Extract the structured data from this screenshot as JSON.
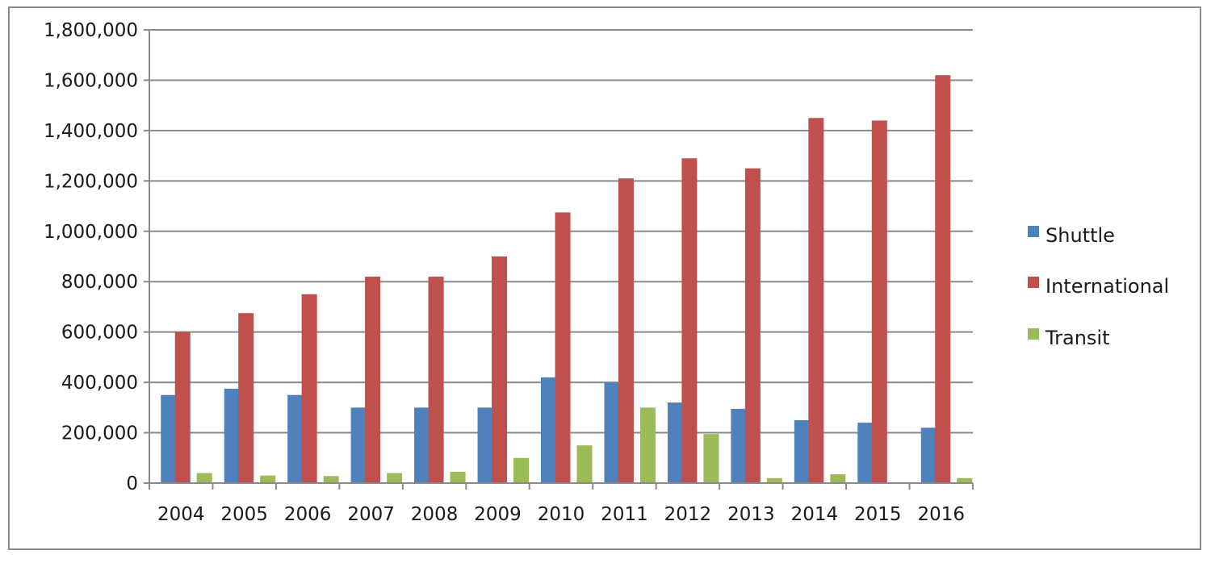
{
  "chart_data": {
    "type": "bar",
    "title": "",
    "xlabel": "",
    "ylabel": "",
    "categories": [
      "2004",
      "2005",
      "2006",
      "2007",
      "2008",
      "2009",
      "2010",
      "2011",
      "2012",
      "2013",
      "2014",
      "2015",
      "2016"
    ],
    "series": [
      {
        "name": "Shuttle",
        "color": "#4f81bd",
        "values": [
          350000,
          375000,
          350000,
          300000,
          300000,
          300000,
          420000,
          400000,
          320000,
          295000,
          250000,
          240000,
          220000
        ]
      },
      {
        "name": "International",
        "color": "#c0504d",
        "values": [
          600000,
          675000,
          750000,
          820000,
          820000,
          900000,
          1075000,
          1210000,
          1290000,
          1250000,
          1450000,
          1440000,
          1620000
        ]
      },
      {
        "name": "Transit",
        "color": "#9bbb59",
        "values": [
          40000,
          30000,
          28000,
          40000,
          45000,
          100000,
          150000,
          300000,
          195000,
          20000,
          35000,
          0,
          20000
        ]
      }
    ],
    "ylim": [
      0,
      1800000
    ],
    "yticks": [
      0,
      200000,
      400000,
      600000,
      800000,
      1000000,
      1200000,
      1400000,
      1600000,
      1800000
    ],
    "ytick_labels": [
      "0",
      "200,000",
      "400,000",
      "600,000",
      "800,000",
      "1,000,000",
      "1,200,000",
      "1,400,000",
      "1,600,000",
      "1,800,000"
    ],
    "grid": true,
    "legend_position": "right"
  }
}
